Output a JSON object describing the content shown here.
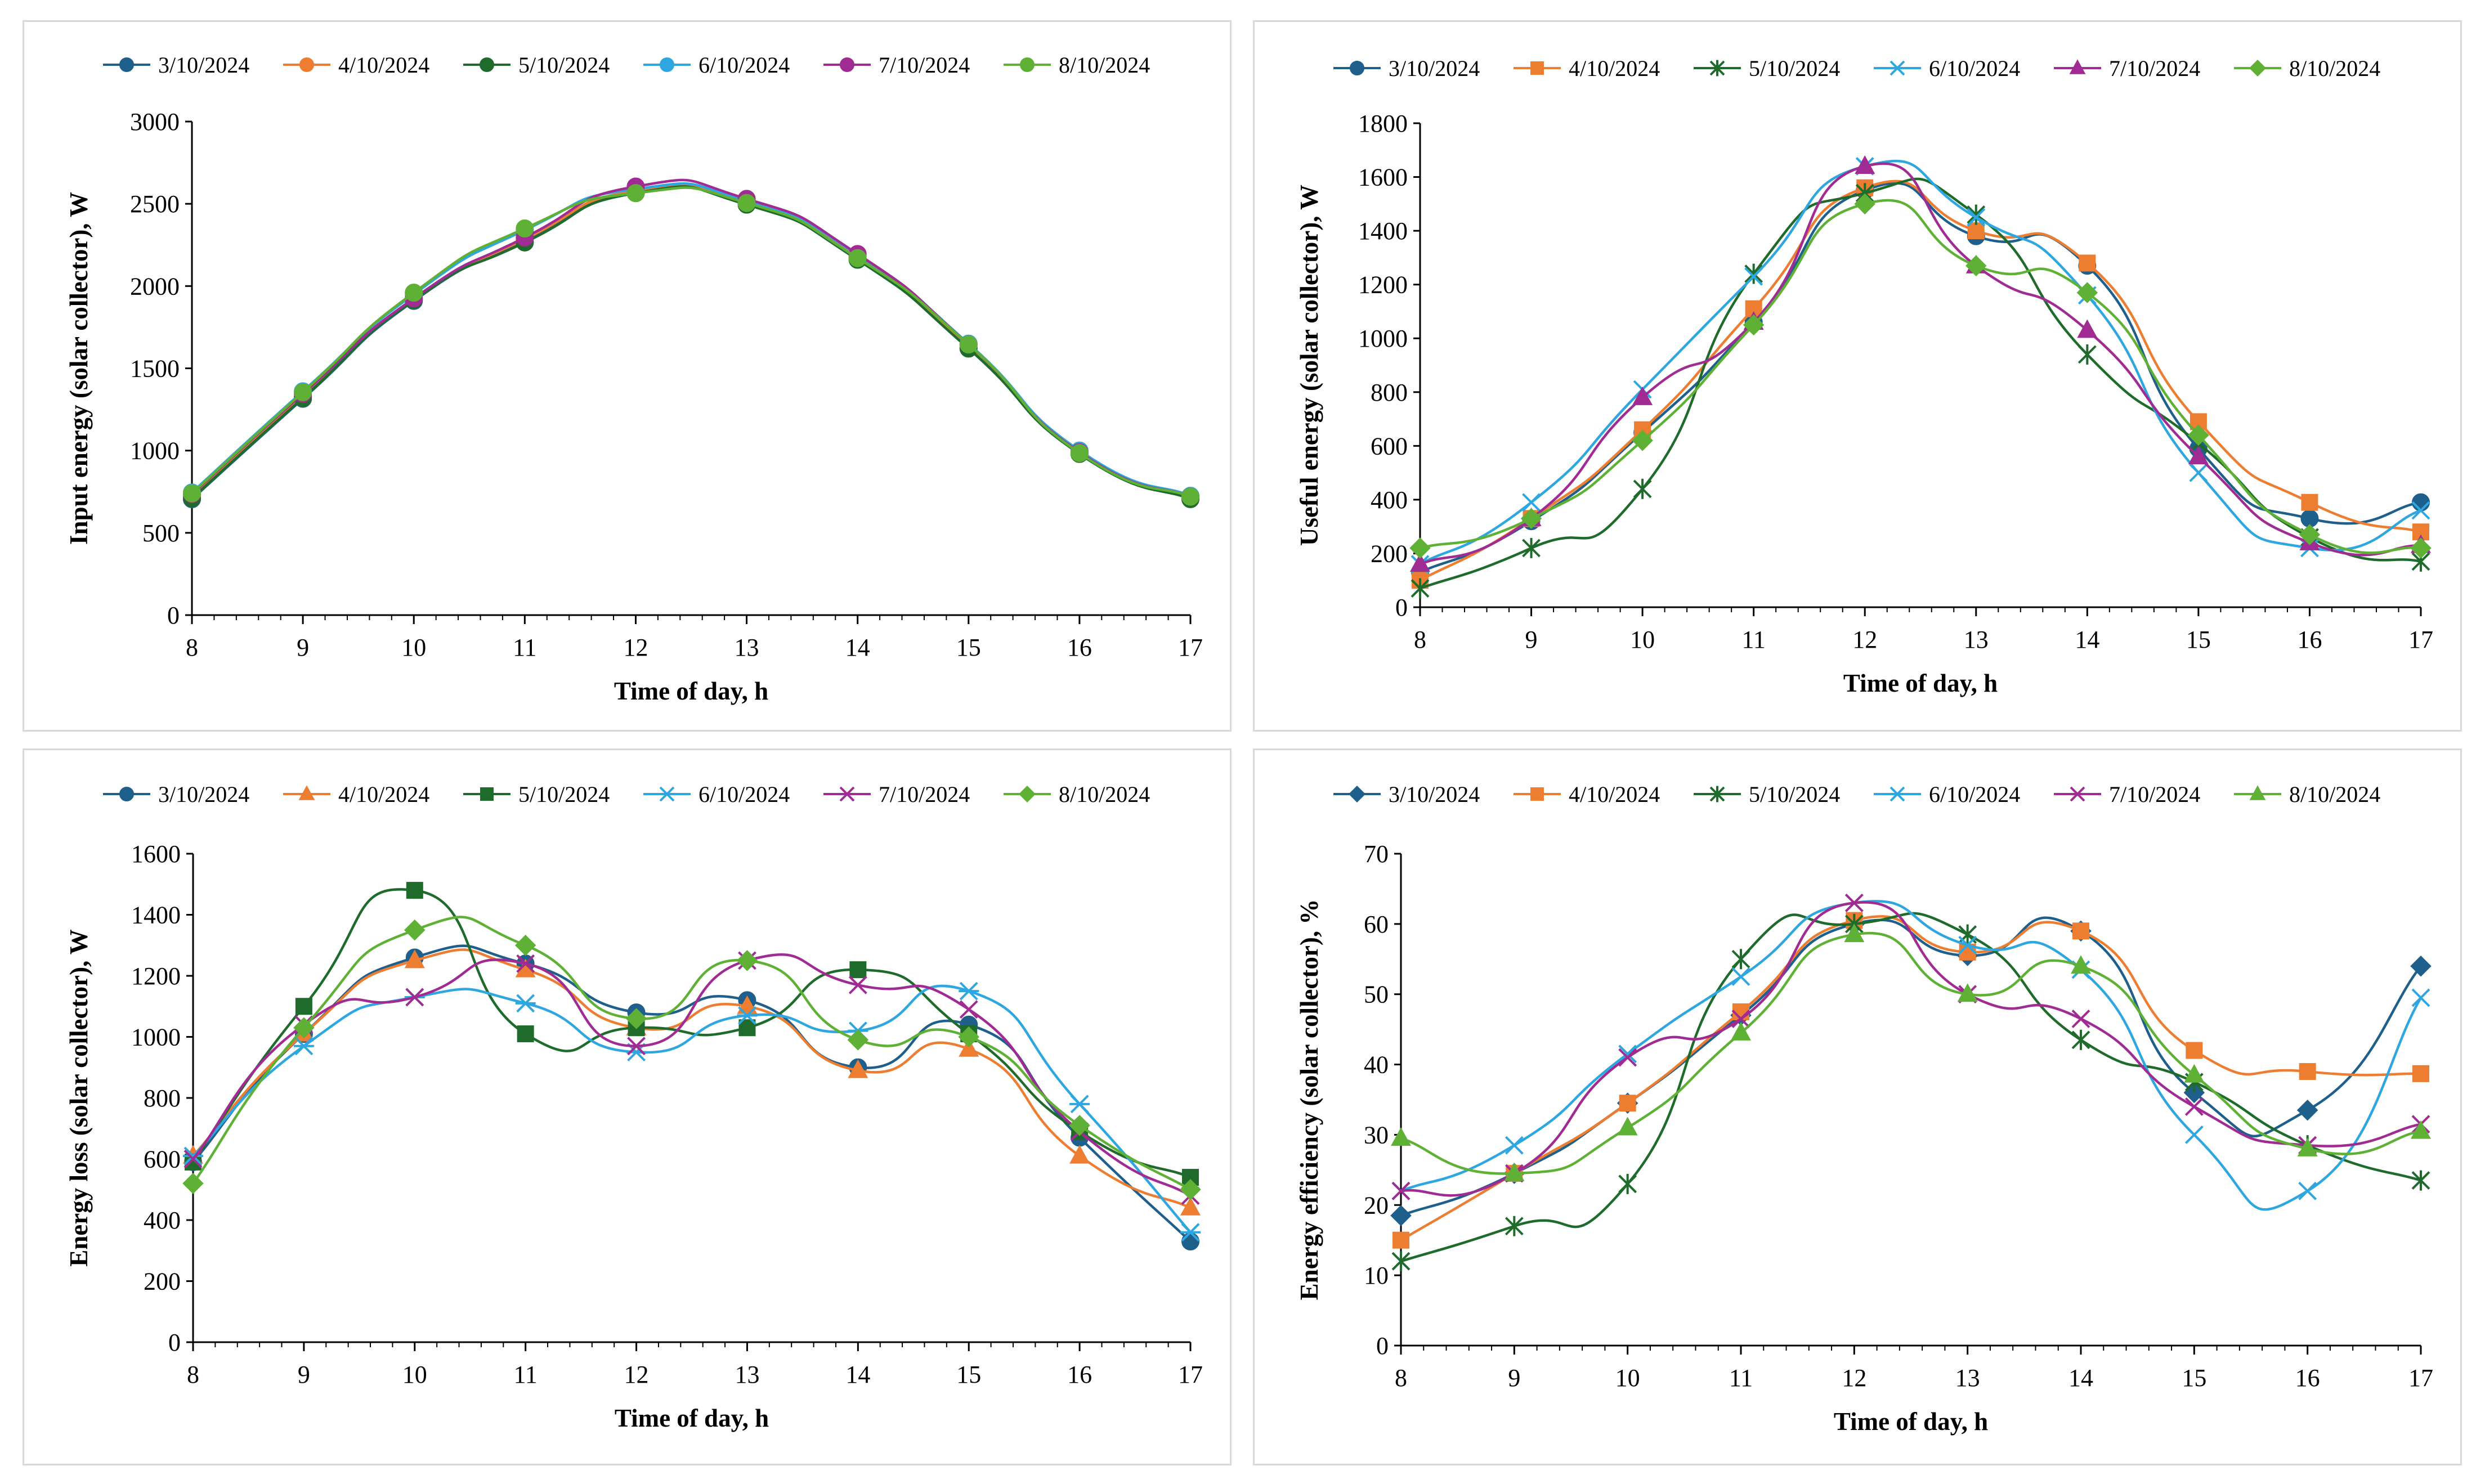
{
  "chart_data": [
    {
      "type": "line",
      "id": "input-energy",
      "ylabel": "Input energy (solar collector), W",
      "xlabel": "Time of day, h",
      "x": [
        8,
        9,
        10,
        11,
        12,
        13,
        14,
        15,
        16,
        17
      ],
      "ylim": [
        0,
        3000
      ],
      "ystep": 500,
      "grid": false,
      "legend": "top",
      "series": [
        {
          "name": "3/10/2024",
          "color": "#1f5f8b",
          "marker": "circle",
          "values": [
            705,
            1315,
            1910,
            2270,
            2570,
            2500,
            2170,
            1625,
            985,
            710
          ]
        },
        {
          "name": "4/10/2024",
          "color": "#ed7d31",
          "marker": "circle",
          "values": [
            715,
            1330,
            1920,
            2285,
            2580,
            2510,
            2180,
            1635,
            990,
            715
          ]
        },
        {
          "name": "5/10/2024",
          "color": "#1e6b2c",
          "marker": "circle",
          "values": [
            710,
            1320,
            1915,
            2265,
            2565,
            2495,
            2160,
            1620,
            980,
            705
          ]
        },
        {
          "name": "6/10/2024",
          "color": "#2ea7e0",
          "marker": "circle",
          "values": [
            745,
            1360,
            1950,
            2340,
            2590,
            2520,
            2190,
            1650,
            1000,
            725
          ]
        },
        {
          "name": "7/10/2024",
          "color": "#a02b93",
          "marker": "circle",
          "values": [
            735,
            1345,
            1925,
            2295,
            2605,
            2530,
            2195,
            1645,
            990,
            720
          ]
        },
        {
          "name": "8/10/2024",
          "color": "#5fb135",
          "marker": "circle",
          "values": [
            740,
            1355,
            1960,
            2350,
            2565,
            2505,
            2170,
            1645,
            985,
            720
          ]
        }
      ]
    },
    {
      "type": "line",
      "id": "useful-energy",
      "ylabel": "Useful energy (solar collector), W",
      "xlabel": "Time of day, h",
      "x": [
        8,
        9,
        10,
        11,
        12,
        13,
        14,
        15,
        16,
        17
      ],
      "ylim": [
        0,
        1800
      ],
      "ystep": 200,
      "grid": false,
      "legend": "top",
      "series": [
        {
          "name": "3/10/2024",
          "color": "#1f5f8b",
          "marker": "circle",
          "values": [
            130,
            320,
            650,
            1060,
            1550,
            1380,
            1270,
            590,
            330,
            390
          ]
        },
        {
          "name": "4/10/2024",
          "color": "#ed7d31",
          "marker": "square",
          "values": [
            100,
            330,
            660,
            1110,
            1560,
            1400,
            1280,
            690,
            390,
            280
          ]
        },
        {
          "name": "5/10/2024",
          "color": "#1e6b2c",
          "marker": "star",
          "values": [
            70,
            220,
            440,
            1240,
            1540,
            1460,
            940,
            610,
            260,
            170
          ]
        },
        {
          "name": "6/10/2024",
          "color": "#2ea7e0",
          "marker": "x",
          "values": [
            160,
            390,
            810,
            1230,
            1640,
            1450,
            1160,
            500,
            220,
            360
          ]
        },
        {
          "name": "7/10/2024",
          "color": "#a02b93",
          "marker": "triangle",
          "values": [
            160,
            330,
            780,
            1060,
            1640,
            1270,
            1030,
            560,
            240,
            230
          ]
        },
        {
          "name": "8/10/2024",
          "color": "#5fb135",
          "marker": "diamond",
          "values": [
            220,
            330,
            620,
            1050,
            1500,
            1270,
            1170,
            640,
            270,
            220
          ]
        }
      ]
    },
    {
      "type": "line",
      "id": "energy-loss",
      "ylabel": "Energy loss (solar collector), W",
      "xlabel": "Time of day, h",
      "x": [
        8,
        9,
        10,
        11,
        12,
        13,
        14,
        15,
        16,
        17
      ],
      "ylim": [
        0,
        1600
      ],
      "ystep": 200,
      "grid": false,
      "legend": "top",
      "series": [
        {
          "name": "3/10/2024",
          "color": "#1f5f8b",
          "marker": "circle",
          "values": [
            590,
            1010,
            1260,
            1240,
            1080,
            1120,
            900,
            1040,
            670,
            330
          ]
        },
        {
          "name": "4/10/2024",
          "color": "#ed7d31",
          "marker": "triangle",
          "values": [
            610,
            1010,
            1250,
            1220,
            1030,
            1100,
            890,
            960,
            610,
            440
          ]
        },
        {
          "name": "5/10/2024",
          "color": "#1e6b2c",
          "marker": "square",
          "values": [
            590,
            1100,
            1480,
            1010,
            1030,
            1030,
            1220,
            1010,
            690,
            540
          ]
        },
        {
          "name": "6/10/2024",
          "color": "#2ea7e0",
          "marker": "asterisk",
          "values": [
            610,
            970,
            1130,
            1110,
            950,
            1070,
            1020,
            1150,
            780,
            360
          ]
        },
        {
          "name": "7/10/2024",
          "color": "#a02b93",
          "marker": "x",
          "values": [
            600,
            1040,
            1130,
            1240,
            970,
            1250,
            1170,
            1090,
            690,
            480
          ]
        },
        {
          "name": "8/10/2024",
          "color": "#5fb135",
          "marker": "diamond",
          "values": [
            520,
            1030,
            1350,
            1300,
            1060,
            1250,
            990,
            1000,
            710,
            500
          ]
        }
      ]
    },
    {
      "type": "line",
      "id": "energy-efficiency",
      "ylabel": "Energy efficiency (solar collector), %",
      "xlabel": "Time of day, h",
      "x": [
        8,
        9,
        10,
        11,
        12,
        13,
        14,
        15,
        16,
        17
      ],
      "ylim": [
        0,
        70
      ],
      "ystep": 10,
      "grid": false,
      "legend": "top",
      "series": [
        {
          "name": "3/10/2024",
          "color": "#1f5f8b",
          "marker": "diamond",
          "values": [
            18.5,
            24.5,
            34.5,
            47,
            60,
            55.5,
            59,
            36,
            33.5,
            54
          ]
        },
        {
          "name": "4/10/2024",
          "color": "#ed7d31",
          "marker": "square",
          "values": [
            15,
            24.5,
            34.5,
            47.5,
            60.5,
            56,
            59,
            42,
            39,
            38.7
          ]
        },
        {
          "name": "5/10/2024",
          "color": "#1e6b2c",
          "marker": "star",
          "values": [
            12,
            17,
            23,
            55,
            60,
            58.5,
            43.5,
            37.5,
            28.5,
            23.5
          ]
        },
        {
          "name": "6/10/2024",
          "color": "#2ea7e0",
          "marker": "x",
          "values": [
            22,
            28.5,
            41.5,
            52.5,
            63,
            57,
            53.5,
            30,
            22,
            49.5
          ]
        },
        {
          "name": "7/10/2024",
          "color": "#a02b93",
          "marker": "x",
          "values": [
            22,
            24.5,
            41,
            46.5,
            63,
            50,
            46.5,
            34,
            28.5,
            31.5
          ]
        },
        {
          "name": "8/10/2024",
          "color": "#5fb135",
          "marker": "triangle",
          "values": [
            29.5,
            24.5,
            31,
            44.5,
            58.5,
            50,
            54,
            38.5,
            28,
            30.5
          ]
        }
      ]
    }
  ]
}
